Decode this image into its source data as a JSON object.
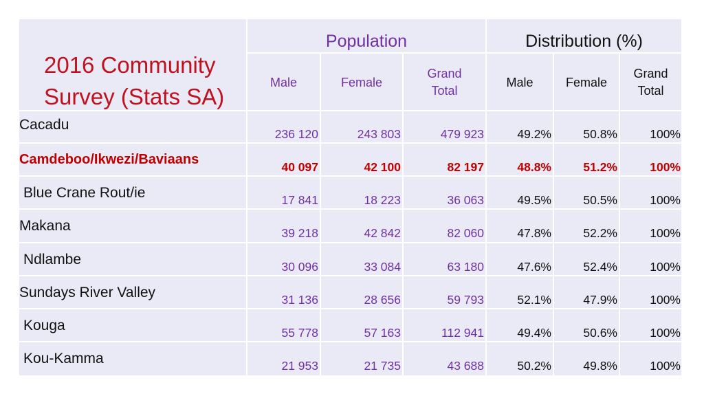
{
  "title_line1": "2016 Community",
  "title_line2": "Survey (Stats SA)",
  "groups": {
    "population": "Population",
    "distribution": "Distribution (%)"
  },
  "subheaders": {
    "pop_male": "Male",
    "pop_female": "Female",
    "pop_total_1": "Grand",
    "pop_total_2": "Total",
    "dist_male": "Male",
    "dist_female": "Female",
    "dist_total_1": "Grand",
    "dist_total_2": "Total"
  },
  "colors": {
    "accent_purple": "#7030a0",
    "highlight_red": "#c00000",
    "title_red": "#c0111f",
    "table_bg": "#e9eaf5"
  },
  "rows": [
    {
      "name": "Cacadu",
      "pop_male": "236 120",
      "pop_female": "243 803",
      "pop_total": "479 923",
      "dist_male": "49.2%",
      "dist_female": "50.8%",
      "dist_total": "100%"
    },
    {
      "name": "Camdeboo/Ikwezi/Baviaans",
      "pop_male": "40 097",
      "pop_female": "42 100",
      "pop_total": "82 197",
      "dist_male": "48.8%",
      "dist_female": "51.2%",
      "dist_total": "100%"
    },
    {
      "name": "Blue Crane Rout/ie",
      "pop_male": "17 841",
      "pop_female": "18 223",
      "pop_total": "36 063",
      "dist_male": "49.5%",
      "dist_female": "50.5%",
      "dist_total": "100%"
    },
    {
      "name": "Makana",
      "pop_male": "39 218",
      "pop_female": "42 842",
      "pop_total": "82 060",
      "dist_male": "47.8%",
      "dist_female": "52.2%",
      "dist_total": "100%"
    },
    {
      "name": "Ndlambe",
      "pop_male": "30 096",
      "pop_female": "33 084",
      "pop_total": "63 180",
      "dist_male": "47.6%",
      "dist_female": "52.4%",
      "dist_total": "100%"
    },
    {
      "name": "Sundays River Valley",
      "pop_male": "31 136",
      "pop_female": "28 656",
      "pop_total": "59 793",
      "dist_male": "52.1%",
      "dist_female": "47.9%",
      "dist_total": "100%"
    },
    {
      "name": "Kouga",
      "pop_male": "55 778",
      "pop_female": "57 163",
      "pop_total": "112 941",
      "dist_male": "49.4%",
      "dist_female": "50.6%",
      "dist_total": "100%"
    },
    {
      "name": "Kou-Kamma",
      "pop_male": "21 953",
      "pop_female": "21 735",
      "pop_total": "43 688",
      "dist_male": "50.2%",
      "dist_female": "49.8%",
      "dist_total": "100%"
    }
  ]
}
